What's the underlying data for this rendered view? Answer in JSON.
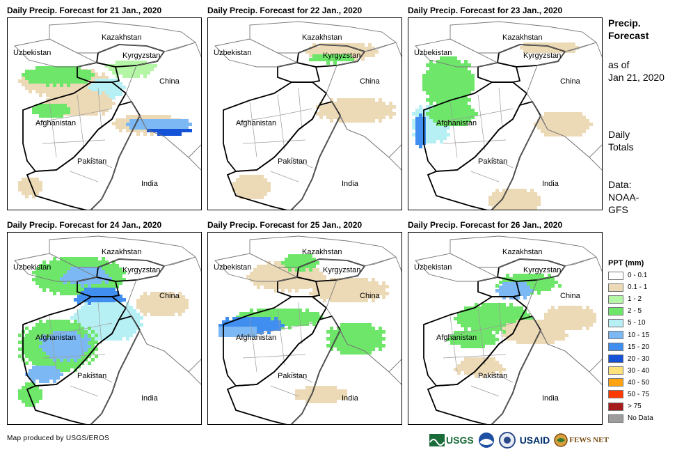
{
  "panels": [
    {
      "title": "Daily Precip. Forecast for 21 Jan., 2020",
      "pattern": 0
    },
    {
      "title": "Daily Precip. Forecast for 22 Jan., 2020",
      "pattern": 1
    },
    {
      "title": "Daily Precip. Forecast for 23 Jan., 2020",
      "pattern": 2
    },
    {
      "title": "Daily Precip. Forecast for 24 Jan., 2020",
      "pattern": 3
    },
    {
      "title": "Daily Precip. Forecast for 25 Jan., 2020",
      "pattern": 4
    },
    {
      "title": "Daily Precip. Forecast for 26 Jan., 2020",
      "pattern": 5
    }
  ],
  "map_labels": {
    "kazakhstan": "Kazakhstan",
    "uzbekistan": "Uzbekistan",
    "kyrgyzstan": "Kyrgyzstan",
    "china": "China",
    "afghanistan": "Afghanistan",
    "pakistan": "Pakistan",
    "india": "India"
  },
  "side": {
    "title_line1": "Precip.",
    "title_line2": "Forecast",
    "asof_line1": "as of",
    "asof_line2": "Jan 21, 2020",
    "totals_line1": "Daily",
    "totals_line2": "Totals",
    "data_line1": "Data:",
    "data_line2": "NOAA-",
    "data_line3": "GFS"
  },
  "legend": {
    "title": "PPT (mm)",
    "items": [
      {
        "label": "0 - 0.1",
        "color": "#ffffff"
      },
      {
        "label": "0.1 - 1",
        "color": "#ecd9b6"
      },
      {
        "label": "1 - 2",
        "color": "#b4f5a6"
      },
      {
        "label": "2 - 5",
        "color": "#6ee66a"
      },
      {
        "label": "5 - 10",
        "color": "#b6f0f5"
      },
      {
        "label": "10 - 15",
        "color": "#7cb9f4"
      },
      {
        "label": "15 - 20",
        "color": "#3f8ef0"
      },
      {
        "label": "20 - 30",
        "color": "#1452d8"
      },
      {
        "label": "30 - 40",
        "color": "#ffe27a"
      },
      {
        "label": "40 - 50",
        "color": "#ffa313"
      },
      {
        "label": "50 - 75",
        "color": "#ff3a00"
      },
      {
        "label": "> 75",
        "color": "#a61c1c"
      },
      {
        "label": "No Data",
        "color": "#9c9c9c"
      }
    ]
  },
  "credit": "Map produced by USGS/EROS",
  "logos": {
    "usgs": "USGS",
    "usaid": "USAID",
    "fewsnet": "FEWS NET"
  }
}
